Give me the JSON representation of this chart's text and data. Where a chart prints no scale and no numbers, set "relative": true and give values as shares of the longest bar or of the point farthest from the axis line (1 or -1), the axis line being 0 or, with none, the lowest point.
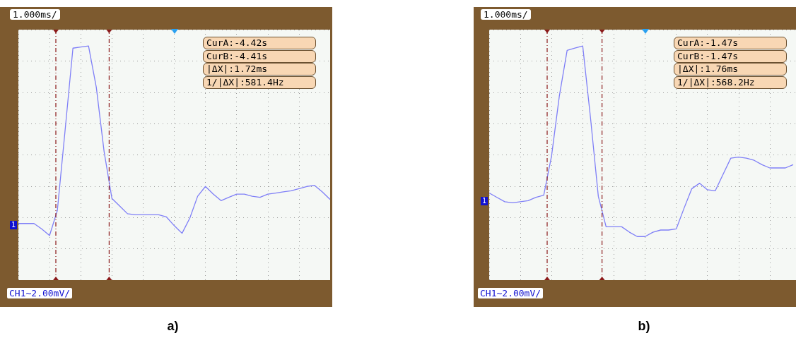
{
  "chart_data": [
    {
      "type": "line",
      "title": "a)",
      "relative": true,
      "grid": true,
      "tick_labels": false,
      "marker": "none",
      "line_style": "solid",
      "categories": [
        null,
        null,
        null,
        null,
        null,
        null,
        null,
        null,
        null,
        null,
        null,
        null,
        null,
        null,
        null,
        null,
        null,
        null,
        null,
        null,
        null,
        null,
        null,
        null,
        null,
        null,
        null,
        null,
        null,
        null,
        null,
        null,
        null,
        null,
        null,
        null,
        null,
        null,
        null,
        null,
        null
      ],
      "series": [
        {
          "color": "#7f7ff7",
          "values": [
            -0.63,
            -0.63,
            -0.63,
            -0.68,
            -0.74,
            -0.51,
            0.23,
            0.98,
            0.99,
            1,
            0.62,
            0.03,
            -0.4,
            -0.47,
            -0.54,
            -0.55,
            -0.55,
            -0.55,
            -0.55,
            -0.57,
            -0.65,
            -0.72,
            -0.58,
            -0.38,
            -0.29,
            -0.36,
            -0.42,
            -0.39,
            -0.36,
            -0.36,
            -0.38,
            -0.39,
            -0.36,
            -0.35,
            -0.34,
            -0.33,
            -0.31,
            -0.29,
            -0.28,
            -0.34,
            -0.41
          ]
        }
      ],
      "annotations": [
        "1.000ms/",
        "CurA:-4.42s",
        "CurB:-4.41s",
        "|ΔX|:1.72ms",
        "1/|ΔX|:581.4Hz",
        "CH1~2.00mV/",
        "1"
      ]
    },
    {
      "type": "line",
      "title": "b)",
      "relative": true,
      "grid": true,
      "tick_labels": false,
      "marker": "none",
      "line_style": "solid",
      "categories": [
        null,
        null,
        null,
        null,
        null,
        null,
        null,
        null,
        null,
        null,
        null,
        null,
        null,
        null,
        null,
        null,
        null,
        null,
        null,
        null,
        null,
        null,
        null,
        null,
        null,
        null,
        null,
        null,
        null,
        null,
        null,
        null,
        null,
        null,
        null,
        null,
        null,
        null,
        null,
        null,
        null
      ],
      "series": [
        {
          "color": "#7f7ff7",
          "values": [
            -0.35,
            -0.39,
            -0.43,
            -0.44,
            -0.43,
            -0.42,
            -0.39,
            -0.37,
            -0.01,
            0.54,
            0.96,
            0.98,
            1,
            0.34,
            -0.38,
            -0.66,
            -0.66,
            -0.66,
            -0.71,
            -0.75,
            -0.75,
            -0.71,
            -0.69,
            -0.69,
            -0.68,
            -0.49,
            -0.31,
            -0.26,
            -0.32,
            -0.33,
            -0.18,
            -0.03,
            -0.02,
            -0.03,
            -0.05,
            -0.09,
            -0.12,
            -0.12,
            -0.12,
            -0.09,
            null
          ]
        }
      ],
      "annotations": [
        "1.000ms/",
        "CurA:-1.47s",
        "CurB:-1.47s",
        "|ΔX|:1.76ms",
        "1/|ΔX|:568.2Hz",
        "CH1~2.00mV/",
        "1"
      ]
    }
  ]
}
